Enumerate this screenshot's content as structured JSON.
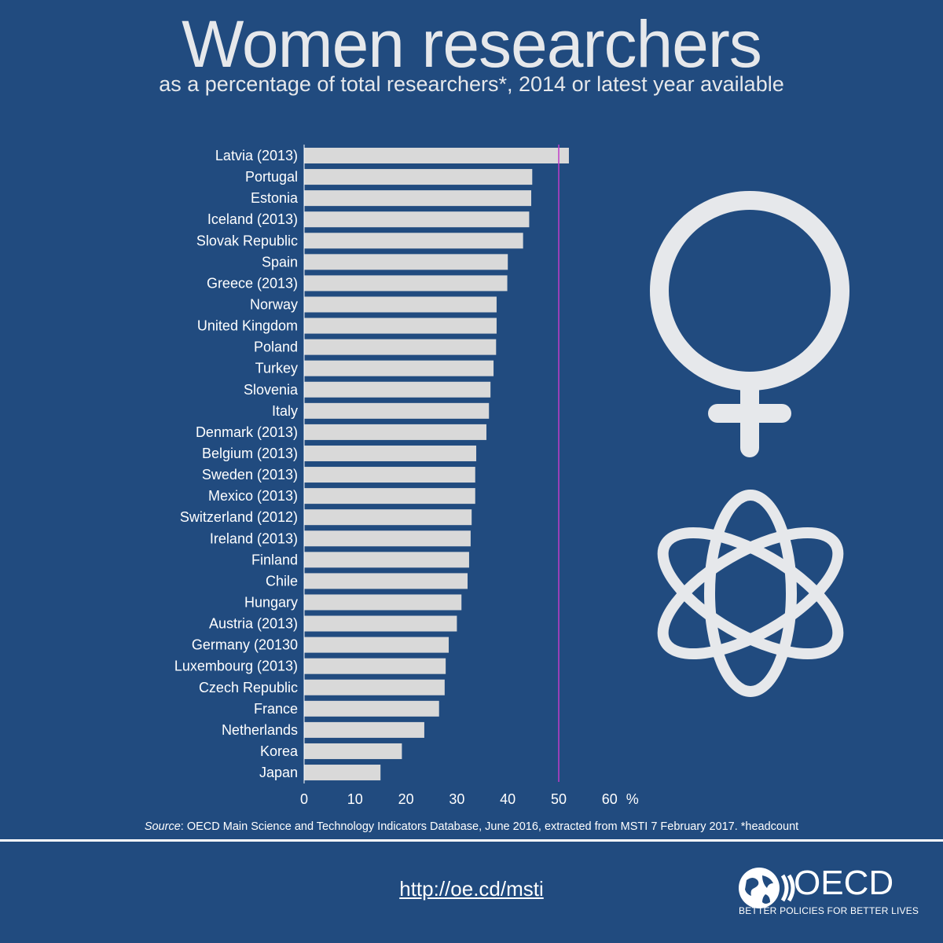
{
  "title": "Women researchers",
  "subtitle": "as a percentage of total researchers*, 2014 or latest year available",
  "source_label": "Source",
  "source_text": ": OECD Main Science and Technology Indicators Database, June 2016, extracted from MSTI 7 February 2017. *headcount",
  "url": "http://oe.cd/msti",
  "logo": {
    "name": "OECD",
    "tagline": "BETTER POLICIES FOR BETTER LIVES"
  },
  "icons": [
    "female-symbol-icon",
    "atom-icon",
    "oecd-globe-icon"
  ],
  "colors": {
    "background": "#214b7f",
    "bar": "#d9d9d9",
    "reference_line": "#c03cc8",
    "text": "#ffffff"
  },
  "chart_data": {
    "type": "bar",
    "orientation": "horizontal",
    "categories": [
      "Latvia (2013)",
      "Portugal",
      "Estonia",
      "Iceland (2013)",
      "Slovak Republic",
      "Spain",
      "Greece (2013)",
      "Norway",
      "United Kingdom",
      "Poland",
      "Turkey",
      "Slovenia",
      "Italy",
      "Denmark (2013)",
      "Belgium (2013)",
      "Sweden (2013)",
      "Mexico (2013)",
      "Switzerland (2012)",
      "Ireland (2013)",
      "Finland",
      "Chile",
      "Hungary",
      "Austria (2013)",
      "Germany (20130",
      "Luxembourg (2013)",
      "Czech Republic",
      "France",
      "Netherlands",
      "Korea",
      "Japan"
    ],
    "values": [
      52.0,
      44.8,
      44.6,
      44.2,
      43.0,
      40.0,
      39.9,
      37.8,
      37.8,
      37.7,
      37.2,
      36.6,
      36.3,
      35.8,
      33.8,
      33.6,
      33.6,
      32.9,
      32.7,
      32.4,
      32.1,
      30.9,
      30.0,
      28.4,
      27.8,
      27.6,
      26.5,
      23.6,
      19.2,
      15.0
    ],
    "xlim": [
      0,
      60
    ],
    "xticks": [
      "0",
      "10",
      "20",
      "30",
      "40",
      "50",
      "60"
    ],
    "xunit": "%",
    "reference_line": 50,
    "title": "Women researchers",
    "xlabel": "%",
    "ylabel": ""
  }
}
